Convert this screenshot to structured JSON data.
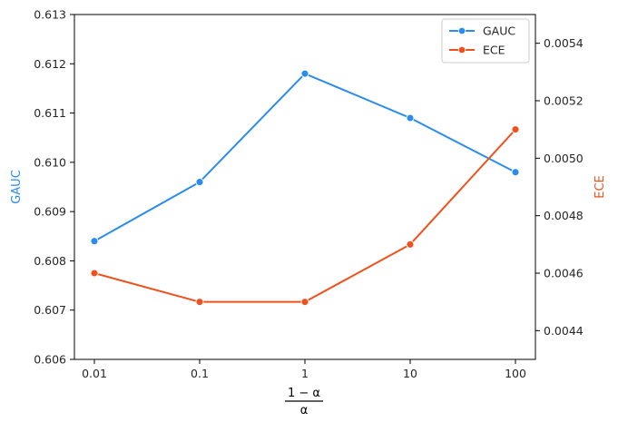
{
  "chart_data": {
    "type": "line",
    "categories": [
      "0.01",
      "0.1",
      "1",
      "10",
      "100"
    ],
    "xlabel": {
      "numerator": "1 − α",
      "denominator": "α"
    },
    "left_axis": {
      "label": "GAUC",
      "color": "#2b8cf0",
      "ylim": [
        0.606,
        0.613
      ],
      "ticks": [
        "0.606",
        "0.607",
        "0.608",
        "0.609",
        "0.610",
        "0.611",
        "0.612",
        "0.613"
      ]
    },
    "right_axis": {
      "label": "ECE",
      "color": "#f0501a",
      "ylim": [
        0.0043,
        0.0055
      ],
      "ticks": [
        "0.0044",
        "0.0046",
        "0.0048",
        "0.0050",
        "0.0052",
        "0.0054"
      ]
    },
    "series": [
      {
        "name": "GAUC",
        "axis": "left",
        "color": "#2b8cf0",
        "values": [
          0.6084,
          0.6096,
          0.6118,
          0.6109,
          0.6098
        ]
      },
      {
        "name": "ECE",
        "axis": "right",
        "color": "#f0501a",
        "values": [
          0.0046,
          0.0045,
          0.0045,
          0.0047,
          0.0051
        ]
      }
    ],
    "legend": {
      "placement": "top-right"
    },
    "grid": false
  }
}
